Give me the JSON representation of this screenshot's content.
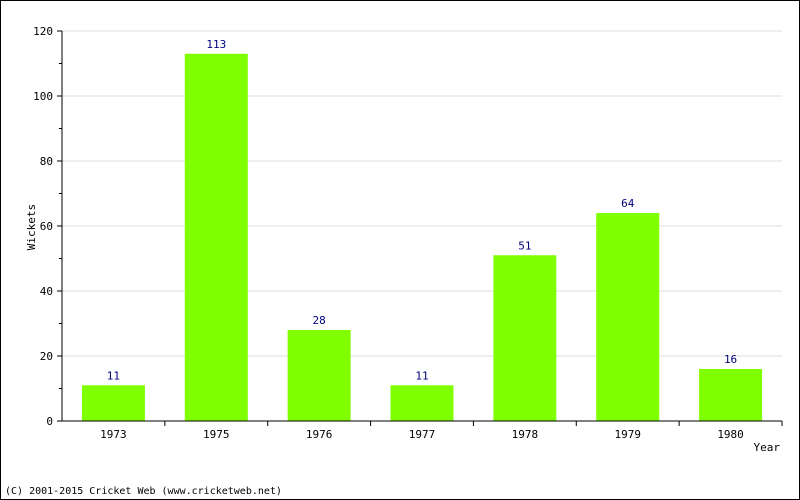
{
  "chart_data": {
    "type": "bar",
    "categories": [
      "1973",
      "1975",
      "1976",
      "1977",
      "1978",
      "1979",
      "1980"
    ],
    "values": [
      11,
      113,
      28,
      11,
      51,
      64,
      16
    ],
    "title": "",
    "xlabel": "Year",
    "ylabel": "Wickets",
    "ylim": [
      0,
      120
    ],
    "yticks": [
      0,
      20,
      40,
      60,
      80,
      100,
      120
    ],
    "grid": true,
    "bar_color": "#80ff00",
    "value_label_color": "#00007f"
  },
  "footer": {
    "copyright": "(C) 2001-2015 Cricket Web (www.cricketweb.net)"
  }
}
